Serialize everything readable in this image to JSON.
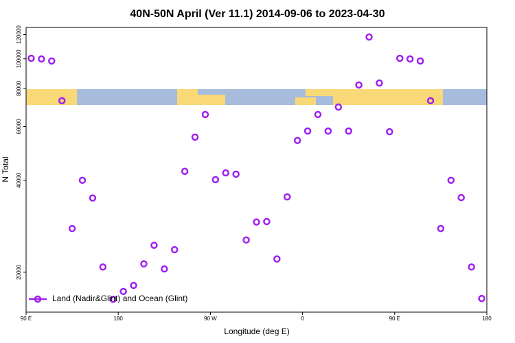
{
  "chart_data": {
    "type": "scatter",
    "title": "40N-50N April (Ver 11.1)   2014-09-06 to 2023-04-30",
    "x_label": "Longitude (deg E)",
    "y_label": "N Total",
    "x": [
      95,
      105,
      115,
      125,
      135,
      145,
      155,
      165,
      175,
      185,
      195,
      205,
      215,
      225,
      235,
      245,
      255,
      265,
      275,
      285,
      295,
      305,
      315,
      325,
      335,
      345,
      355,
      365,
      375,
      385,
      395,
      405,
      415,
      425,
      435,
      445,
      455,
      465,
      475,
      485,
      495,
      505,
      515,
      525,
      535
    ],
    "series": [
      {
        "name": "Land (Nadir&Glint) and Ocean (Glint)",
        "color": "#a020f0",
        "values": [
          100400,
          99900,
          98400,
          72900,
          27800,
          40000,
          35000,
          20800,
          16300,
          17300,
          18100,
          21300,
          24500,
          20500,
          23700,
          42800,
          55400,
          65700,
          40200,
          42300,
          41900,
          25500,
          29200,
          29300,
          22100,
          35300,
          54000,
          58000,
          65700,
          58000,
          69500,
          58000,
          82100,
          117900,
          83300,
          57700,
          100400,
          99900,
          98400,
          72900,
          27800,
          40000,
          35100,
          20800,
          16400
        ]
      }
    ],
    "xlim": [
      90,
      540
    ],
    "xticks": [
      {
        "value": 90,
        "label": "90 E"
      },
      {
        "value": 180,
        "label": "180"
      },
      {
        "value": 270,
        "label": "90 W"
      },
      {
        "value": 360,
        "label": "0"
      },
      {
        "value": 450,
        "label": "90 E"
      },
      {
        "value": 540,
        "label": "180"
      }
    ],
    "ylim": [
      14800,
      126700
    ],
    "yticks": [
      20000,
      40000,
      60000,
      80000,
      100000,
      120000
    ],
    "ylog": true,
    "legend": "bottom-left"
  }
}
